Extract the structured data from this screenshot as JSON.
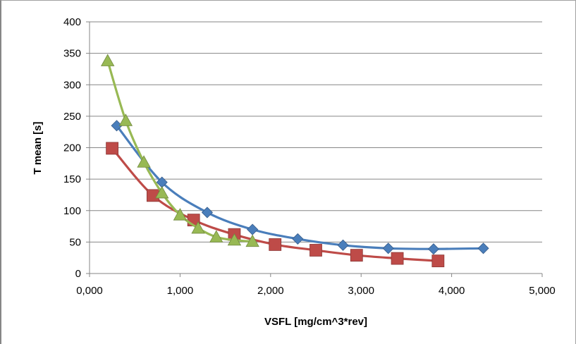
{
  "chart_data": {
    "type": "line",
    "title": "",
    "xlabel": "VSFL [mg/cm^3*rev]",
    "ylabel": "T mean [s]",
    "xlim": [
      0,
      5000
    ],
    "ylim": [
      0,
      400
    ],
    "x_ticks": [
      0,
      1000,
      2000,
      3000,
      4000,
      5000
    ],
    "x_tick_labels": [
      "0,000",
      "1,000",
      "2,000",
      "3,000",
      "4,000",
      "5,000"
    ],
    "y_ticks": [
      0,
      50,
      100,
      150,
      200,
      250,
      300,
      350,
      400
    ],
    "y_tick_labels": [
      "0",
      "50",
      "100",
      "150",
      "200",
      "250",
      "300",
      "350",
      "400"
    ],
    "grid": "horizontal",
    "legend": "none",
    "series": [
      {
        "color": "#4a7ebb",
        "marker": "diamond",
        "x": [
          300,
          800,
          1300,
          1800,
          2300,
          2800,
          3300,
          3800,
          4350
        ],
        "y": [
          235,
          145,
          97,
          70,
          55,
          45,
          40,
          39,
          40
        ]
      },
      {
        "color": "#be4b48",
        "marker": "square",
        "x": [
          250,
          700,
          1150,
          1600,
          2050,
          2500,
          2950,
          3400,
          3850
        ],
        "y": [
          199,
          124,
          85,
          62,
          46,
          37,
          29,
          24,
          20
        ]
      },
      {
        "color": "#98b954",
        "marker": "triangle",
        "x": [
          200,
          400,
          600,
          800,
          1000,
          1200,
          1400,
          1600,
          1800
        ],
        "y": [
          338,
          243,
          177,
          128,
          93,
          72,
          58,
          53,
          51
        ]
      }
    ]
  }
}
